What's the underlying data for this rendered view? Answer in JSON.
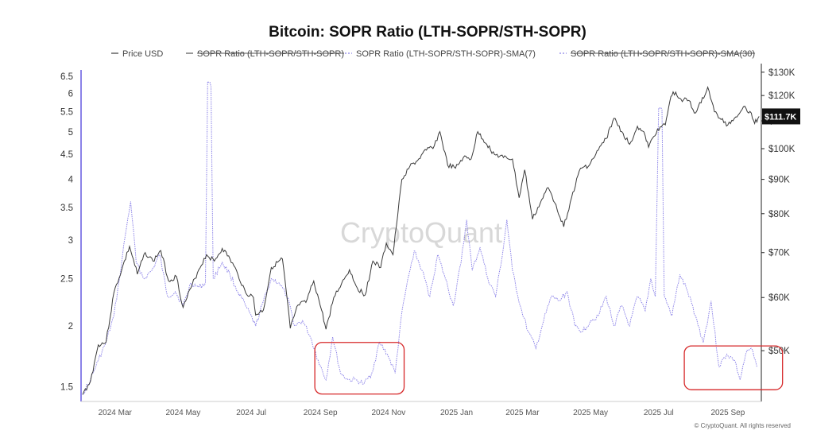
{
  "chart_data": {
    "type": "line",
    "title": "Bitcoin: SOPR Ratio (LTH-SOPR/STH-SOPR)",
    "legend": [
      "Price USD",
      "SOPR Ratio (LTH-SOPR/STH-SOPR)",
      "SOPR Ratio (LTH-SOPR/STH-SOPR)-SMA(7)",
      "SOPR Ratio (LTH-SOPR/STH-SOPR)-SMA(30)"
    ],
    "legend_placement": "top-center",
    "x_ticks": [
      "2024 Mar",
      "2024 May",
      "2024 Jul",
      "2024 Sep",
      "2024 Nov",
      "2025 Jan",
      "2025 Mar",
      "2025 May",
      "2025 Jul",
      "2025 Sep"
    ],
    "x_range": [
      "2024-02-01",
      "2025-10-01"
    ],
    "left_axis": {
      "ticks": [
        "6.5",
        "6",
        "5.5",
        "5",
        "4.5",
        "4",
        "3.5",
        "3",
        "2.5",
        "2",
        "1.5"
      ],
      "scale": "log",
      "range": [
        1.4,
        6.7
      ]
    },
    "right_axis": {
      "ticks": [
        "$130K",
        "$120K",
        "$110K",
        "$100K",
        "$90K",
        "$80K",
        "$70K",
        "$60K",
        "$50K"
      ],
      "scale": "log",
      "range": [
        42000,
        131000
      ]
    },
    "current_price_label": "$111.7K",
    "watermark": "CryptoQuant",
    "copyright": "© CryptoQuant. All rights reserved",
    "colors": {
      "price": "#3a3a3a",
      "sma7": "#8b82e8",
      "highlight": "#d62728",
      "price_tag_bg": "#111111"
    },
    "series": [
      {
        "name": "Price USD",
        "axis": "right",
        "points": [
          [
            "2024-02-01",
            43000
          ],
          [
            "2024-02-08",
            45000
          ],
          [
            "2024-02-15",
            51000
          ],
          [
            "2024-02-22",
            51500
          ],
          [
            "2024-02-29",
            61000
          ],
          [
            "2024-03-07",
            66000
          ],
          [
            "2024-03-14",
            71500
          ],
          [
            "2024-03-21",
            65000
          ],
          [
            "2024-03-28",
            70000
          ],
          [
            "2024-04-04",
            68000
          ],
          [
            "2024-04-11",
            70500
          ],
          [
            "2024-04-18",
            63500
          ],
          [
            "2024-04-25",
            64500
          ],
          [
            "2024-05-01",
            58000
          ],
          [
            "2024-05-08",
            62000
          ],
          [
            "2024-05-15",
            66000
          ],
          [
            "2024-05-22",
            69500
          ],
          [
            "2024-05-29",
            68000
          ],
          [
            "2024-06-05",
            71000
          ],
          [
            "2024-06-12",
            68500
          ],
          [
            "2024-06-19",
            65000
          ],
          [
            "2024-06-26",
            61000
          ],
          [
            "2024-07-03",
            60000
          ],
          [
            "2024-07-05",
            56500
          ],
          [
            "2024-07-12",
            57500
          ],
          [
            "2024-07-19",
            66500
          ],
          [
            "2024-07-29",
            68500
          ],
          [
            "2024-08-05",
            54000
          ],
          [
            "2024-08-12",
            58500
          ],
          [
            "2024-08-19",
            59000
          ],
          [
            "2024-08-26",
            63500
          ],
          [
            "2024-09-02",
            57500
          ],
          [
            "2024-09-06",
            53800
          ],
          [
            "2024-09-13",
            60000
          ],
          [
            "2024-09-20",
            63000
          ],
          [
            "2024-09-27",
            66000
          ],
          [
            "2024-10-04",
            62000
          ],
          [
            "2024-10-11",
            60500
          ],
          [
            "2024-10-18",
            68000
          ],
          [
            "2024-10-25",
            66500
          ],
          [
            "2024-10-30",
            72300
          ],
          [
            "2024-11-05",
            69500
          ],
          [
            "2024-11-08",
            76500
          ],
          [
            "2024-11-13",
            90000
          ],
          [
            "2024-11-20",
            94000
          ],
          [
            "2024-11-27",
            96000
          ],
          [
            "2024-12-05",
            99500
          ],
          [
            "2024-12-12",
            101000
          ],
          [
            "2024-12-17",
            106000
          ],
          [
            "2024-12-24",
            94500
          ],
          [
            "2024-12-31",
            93500
          ],
          [
            "2025-01-07",
            97000
          ],
          [
            "2025-01-14",
            96500
          ],
          [
            "2025-01-20",
            106000
          ],
          [
            "2025-01-28",
            101500
          ],
          [
            "2025-02-04",
            98000
          ],
          [
            "2025-02-12",
            97000
          ],
          [
            "2025-02-20",
            96500
          ],
          [
            "2025-02-26",
            84500
          ],
          [
            "2025-03-03",
            93000
          ],
          [
            "2025-03-10",
            78500
          ],
          [
            "2025-03-17",
            83000
          ],
          [
            "2025-03-24",
            87500
          ],
          [
            "2025-03-31",
            82500
          ],
          [
            "2025-04-07",
            76500
          ],
          [
            "2025-04-14",
            84500
          ],
          [
            "2025-04-22",
            93500
          ],
          [
            "2025-04-30",
            94500
          ],
          [
            "2025-05-08",
            99500
          ],
          [
            "2025-05-15",
            103500
          ],
          [
            "2025-05-22",
            111000
          ],
          [
            "2025-05-29",
            106000
          ],
          [
            "2025-06-05",
            101500
          ],
          [
            "2025-06-12",
            108000
          ],
          [
            "2025-06-19",
            104500
          ],
          [
            "2025-06-22",
            100500
          ],
          [
            "2025-06-30",
            107000
          ],
          [
            "2025-07-07",
            108500
          ],
          [
            "2025-07-11",
            117500
          ],
          [
            "2025-07-14",
            121500
          ],
          [
            "2025-07-21",
            118500
          ],
          [
            "2025-07-28",
            118000
          ],
          [
            "2025-08-02",
            113000
          ],
          [
            "2025-08-08",
            117000
          ],
          [
            "2025-08-14",
            123500
          ],
          [
            "2025-08-20",
            113500
          ],
          [
            "2025-08-26",
            110500
          ],
          [
            "2025-09-01",
            108500
          ],
          [
            "2025-09-08",
            111500
          ],
          [
            "2025-09-15",
            115500
          ],
          [
            "2025-09-22",
            113000
          ],
          [
            "2025-09-25",
            109000
          ],
          [
            "2025-09-29",
            111700
          ]
        ]
      },
      {
        "name": "SOPR Ratio (LTH-SOPR/STH-SOPR)-SMA(7)",
        "axis": "left",
        "points": [
          [
            "2024-02-01",
            1.45
          ],
          [
            "2024-02-08",
            1.55
          ],
          [
            "2024-02-15",
            1.7
          ],
          [
            "2024-02-22",
            1.85
          ],
          [
            "2024-02-29",
            2.1
          ],
          [
            "2024-03-05",
            2.5
          ],
          [
            "2024-03-10",
            3.05
          ],
          [
            "2024-03-15",
            3.6
          ],
          [
            "2024-03-20",
            2.7
          ],
          [
            "2024-03-27",
            2.5
          ],
          [
            "2024-04-03",
            2.6
          ],
          [
            "2024-04-10",
            2.8
          ],
          [
            "2024-04-17",
            2.3
          ],
          [
            "2024-04-24",
            2.35
          ],
          [
            "2024-05-01",
            2.2
          ],
          [
            "2024-05-08",
            2.45
          ],
          [
            "2024-05-15",
            2.4
          ],
          [
            "2024-05-21",
            2.45
          ],
          [
            "2024-05-23",
            6.35
          ],
          [
            "2024-05-26",
            6.2
          ],
          [
            "2024-05-28",
            2.5
          ],
          [
            "2024-06-05",
            2.7
          ],
          [
            "2024-06-12",
            2.55
          ],
          [
            "2024-06-19",
            2.35
          ],
          [
            "2024-06-26",
            2.2
          ],
          [
            "2024-07-05",
            2.0
          ],
          [
            "2024-07-12",
            2.25
          ],
          [
            "2024-07-19",
            2.5
          ],
          [
            "2024-07-26",
            2.45
          ],
          [
            "2024-08-02",
            2.3
          ],
          [
            "2024-08-09",
            2.0
          ],
          [
            "2024-08-16",
            2.05
          ],
          [
            "2024-08-23",
            1.9
          ],
          [
            "2024-08-30",
            1.7
          ],
          [
            "2024-09-06",
            1.55
          ],
          [
            "2024-09-12",
            1.9
          ],
          [
            "2024-09-19",
            1.6
          ],
          [
            "2024-09-26",
            1.55
          ],
          [
            "2024-10-03",
            1.55
          ],
          [
            "2024-10-10",
            1.52
          ],
          [
            "2024-10-17",
            1.6
          ],
          [
            "2024-10-24",
            1.85
          ],
          [
            "2024-10-31",
            1.75
          ],
          [
            "2024-11-07",
            1.6
          ],
          [
            "2024-11-12",
            2.05
          ],
          [
            "2024-11-17",
            2.4
          ],
          [
            "2024-11-24",
            2.85
          ],
          [
            "2024-12-01",
            2.6
          ],
          [
            "2024-12-08",
            2.3
          ],
          [
            "2024-12-15",
            2.8
          ],
          [
            "2024-12-22",
            2.5
          ],
          [
            "2024-12-29",
            2.2
          ],
          [
            "2025-01-05",
            2.7
          ],
          [
            "2025-01-10",
            3.3
          ],
          [
            "2025-01-15",
            2.6
          ],
          [
            "2025-01-22",
            2.9
          ],
          [
            "2025-01-29",
            2.5
          ],
          [
            "2025-02-05",
            2.3
          ],
          [
            "2025-02-12",
            2.9
          ],
          [
            "2025-02-15",
            3.3
          ],
          [
            "2025-02-20",
            2.6
          ],
          [
            "2025-02-27",
            2.2
          ],
          [
            "2025-03-06",
            1.95
          ],
          [
            "2025-03-13",
            1.8
          ],
          [
            "2025-03-20",
            2.05
          ],
          [
            "2025-03-27",
            2.3
          ],
          [
            "2025-04-03",
            2.25
          ],
          [
            "2025-04-10",
            2.35
          ],
          [
            "2025-04-17",
            2.0
          ],
          [
            "2025-04-24",
            1.95
          ],
          [
            "2025-05-01",
            2.05
          ],
          [
            "2025-05-08",
            2.1
          ],
          [
            "2025-05-15",
            2.3
          ],
          [
            "2025-05-22",
            2.0
          ],
          [
            "2025-05-29",
            2.2
          ],
          [
            "2025-06-05",
            2.0
          ],
          [
            "2025-06-12",
            2.3
          ],
          [
            "2025-06-19",
            2.15
          ],
          [
            "2025-06-24",
            2.5
          ],
          [
            "2025-06-28",
            2.3
          ],
          [
            "2025-07-01",
            5.6
          ],
          [
            "2025-07-04",
            5.55
          ],
          [
            "2025-07-06",
            2.3
          ],
          [
            "2025-07-13",
            2.1
          ],
          [
            "2025-07-20",
            2.55
          ],
          [
            "2025-07-27",
            2.35
          ],
          [
            "2025-08-03",
            2.1
          ],
          [
            "2025-08-10",
            1.85
          ],
          [
            "2025-08-17",
            2.25
          ],
          [
            "2025-08-24",
            1.65
          ],
          [
            "2025-08-31",
            1.75
          ],
          [
            "2025-09-07",
            1.7
          ],
          [
            "2025-09-12",
            1.55
          ],
          [
            "2025-09-17",
            1.75
          ],
          [
            "2025-09-22",
            1.8
          ],
          [
            "2025-09-27",
            1.65
          ]
        ]
      }
    ],
    "annotations": [
      {
        "type": "rounded-rectangle",
        "color": "#d62728",
        "x_range": [
          "2024-08-27",
          "2024-11-15"
        ],
        "y_range": [
          1.45,
          1.85
        ]
      },
      {
        "type": "rounded-rectangle",
        "color": "#d62728",
        "x_range": [
          "2025-07-24",
          "2025-10-20"
        ],
        "y_range": [
          1.48,
          1.82
        ]
      }
    ]
  }
}
